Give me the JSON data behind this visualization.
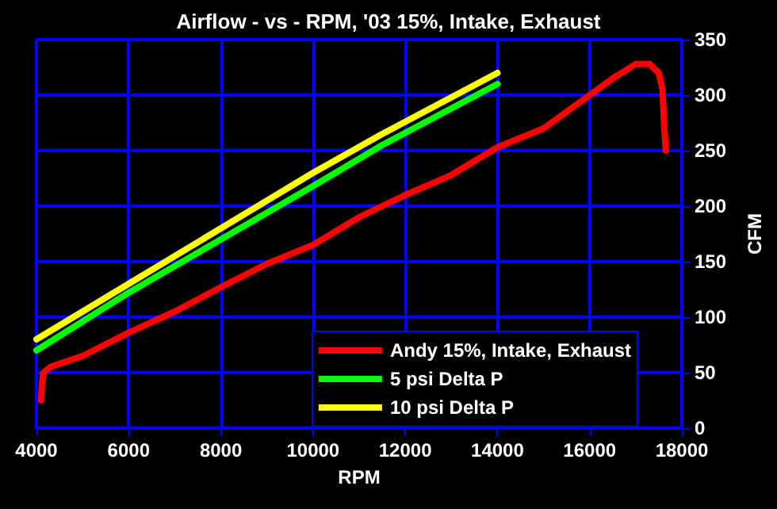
{
  "chart_data": {
    "type": "line",
    "title": "Airflow - vs - RPM, '03 15%, Intake, Exhaust",
    "xlabel": "RPM",
    "ylabel": "CFM",
    "xlim": [
      4000,
      18000
    ],
    "xticks": [
      4000,
      6000,
      8000,
      10000,
      12000,
      14000,
      16000,
      18000
    ],
    "ylim": [
      0,
      350
    ],
    "yticks": [
      0,
      50,
      100,
      150,
      200,
      250,
      300,
      350
    ],
    "grid": true,
    "legend": "bottom right",
    "marker": "none",
    "line_style": "solid",
    "series": [
      {
        "name": "Andy 15%, Intake, Exhaust",
        "color": "#ff0000",
        "x": [
          4100,
          4120,
          4150,
          4300,
          4500,
          5000,
          6000,
          7000,
          8000,
          9000,
          10000,
          11000,
          12000,
          13000,
          14000,
          15000,
          16000,
          16500,
          17000,
          17300,
          17500,
          17580,
          17620,
          17650
        ],
        "values": [
          25,
          40,
          50,
          55,
          58,
          65,
          86,
          105,
          127,
          148,
          165,
          190,
          210,
          228,
          253,
          270,
          300,
          315,
          328,
          328,
          320,
          305,
          270,
          250
        ]
      },
      {
        "name": "5 psi Delta P",
        "color": "#00ff00",
        "x": [
          4000,
          6000,
          8000,
          10000,
          11500,
          14000
        ],
        "values": [
          70,
          122,
          170,
          218,
          255,
          310
        ]
      },
      {
        "name": "10 psi Delta P",
        "color": "#ffff00",
        "x": [
          4000,
          6000,
          8000,
          10000,
          11500,
          14000
        ],
        "values": [
          80,
          130,
          180,
          230,
          265,
          320
        ]
      }
    ]
  }
}
